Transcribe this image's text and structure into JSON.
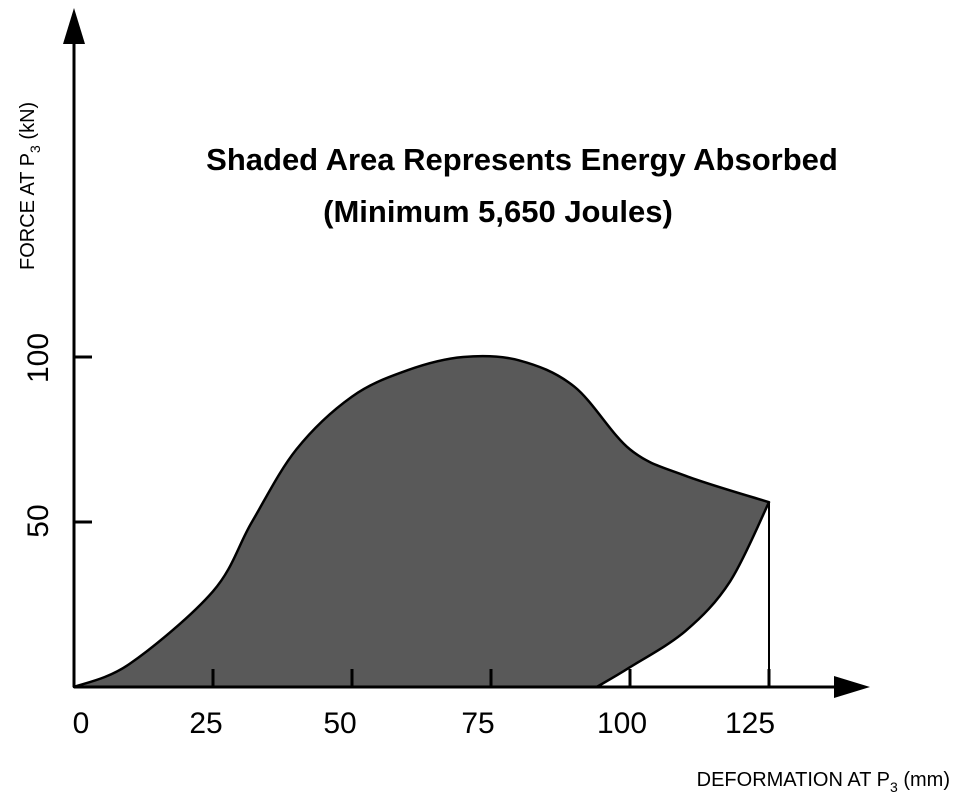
{
  "chart_data": {
    "type": "area",
    "title": "Shaded Area Represents Energy Absorbed",
    "subtitle": "(Minimum 5,650 Joules)",
    "xlabel": {
      "main": "DEFORMATION AT P",
      "subscript": "3",
      "unit": " (mm)"
    },
    "ylabel": {
      "main": "FORCE AT P",
      "subscript": "3",
      "unit": " (kN)"
    },
    "x_ticks": [
      "0",
      "25",
      "50",
      "75",
      "100",
      "125"
    ],
    "y_ticks": [
      "50",
      "100"
    ],
    "xlim": [
      0,
      140
    ],
    "ylim": [
      0,
      200
    ],
    "grid": false,
    "shape": "closed loading-unloading loop",
    "loading_curve": {
      "x": [
        0,
        10,
        25,
        32,
        40,
        50,
        60,
        70,
        80,
        90,
        100,
        110,
        125
      ],
      "y": [
        0,
        7,
        29,
        50,
        72,
        88,
        96,
        100,
        99,
        91,
        72,
        64,
        56
      ]
    },
    "unloading_curve": {
      "x": [
        125,
        118,
        110,
        100,
        94
      ],
      "y": [
        56,
        32,
        17,
        6,
        0
      ]
    },
    "reference_line": {
      "x": 125,
      "y_from": 0,
      "y_to": 56
    }
  }
}
